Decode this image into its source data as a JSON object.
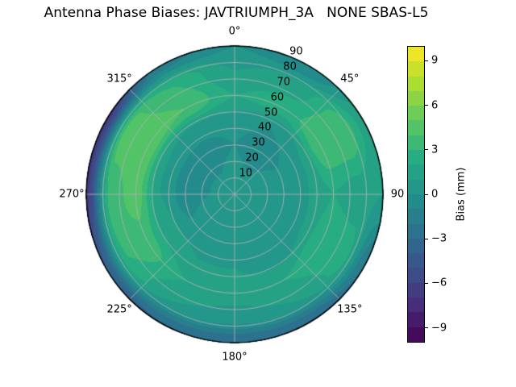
{
  "title": "Antenna Phase Biases: JAVTRIUMPH_3A   NONE SBAS-L5",
  "chart_data": {
    "type": "heatmap",
    "projection": "polar",
    "title": "Antenna Phase Biases: JAVTRIUMPH_3A   NONE SBAS-L5",
    "grid_on": true,
    "r_max": 90,
    "r_tick_step": 10,
    "r_label_angle_deg": 22.5,
    "theta_tick_labels": [
      {
        "angle_deg": 0,
        "label": "0°"
      },
      {
        "angle_deg": 45,
        "label": "45°"
      },
      {
        "angle_deg": 90,
        "label": "90"
      },
      {
        "angle_deg": 135,
        "label": "135°"
      },
      {
        "angle_deg": 180,
        "label": "180°"
      },
      {
        "angle_deg": 225,
        "label": "225°"
      },
      {
        "angle_deg": 270,
        "label": "270°"
      },
      {
        "angle_deg": 315,
        "label": "315°"
      }
    ],
    "r_tick_labels": [
      "10",
      "20",
      "30",
      "40",
      "50",
      "60",
      "70",
      "80",
      "90"
    ],
    "colorbar": {
      "label": "Bias (mm)",
      "tick_labels": [
        "9",
        "6",
        "3",
        "0",
        "−3",
        "−6",
        "−9"
      ],
      "tick_values": [
        9,
        6,
        3,
        0,
        -3,
        -6,
        -9
      ],
      "vmin": -10,
      "vmax": 10,
      "level_step": 1,
      "colormap": "viridis",
      "position": "right"
    },
    "colormap_stops": [
      "#440154",
      "#472d7b",
      "#3b528b",
      "#2c728e",
      "#21918c",
      "#27ad81",
      "#5ec962",
      "#aadc32",
      "#fde725"
    ],
    "bias_grid": {
      "description": "Antenna phase bias (mm) sampled on azimuth x zenith-angle grid; rendered as filled polar contours",
      "azimuth_deg": [
        0,
        30,
        60,
        90,
        120,
        150,
        180,
        210,
        240,
        270,
        300,
        330
      ],
      "radius": [
        0,
        15,
        30,
        45,
        60,
        75,
        90
      ],
      "values_mm": [
        [
          0.3,
          0.3,
          0.0,
          0.5,
          2.0,
          1.0,
          0.0
        ],
        [
          0.3,
          0.0,
          -1.0,
          0.0,
          2.5,
          1.5,
          -1.0
        ],
        [
          0.3,
          0.3,
          0.0,
          1.0,
          4.0,
          4.0,
          1.5
        ],
        [
          0.3,
          0.3,
          0.5,
          1.0,
          2.0,
          1.5,
          1.0
        ],
        [
          0.3,
          0.3,
          0.5,
          1.0,
          3.0,
          2.5,
          -2.0
        ],
        [
          0.3,
          0.3,
          0.5,
          0.5,
          2.0,
          1.0,
          -3.0
        ],
        [
          0.3,
          0.3,
          0.5,
          1.0,
          1.5,
          0.5,
          -3.0
        ],
        [
          0.3,
          0.3,
          0.5,
          1.0,
          2.0,
          1.0,
          -3.0
        ],
        [
          0.3,
          0.3,
          0.0,
          1.5,
          3.5,
          3.0,
          -4.0
        ],
        [
          0.3,
          0.0,
          -0.5,
          1.0,
          4.5,
          3.5,
          -6.5
        ],
        [
          0.3,
          0.0,
          -0.5,
          1.0,
          5.0,
          4.5,
          -6.5
        ],
        [
          0.3,
          0.0,
          -0.5,
          0.5,
          4.0,
          3.0,
          -1.5
        ]
      ]
    },
    "style": {
      "grid_color": "#b0b0b0",
      "outline_color": "#000000",
      "background": "#ffffff"
    }
  }
}
